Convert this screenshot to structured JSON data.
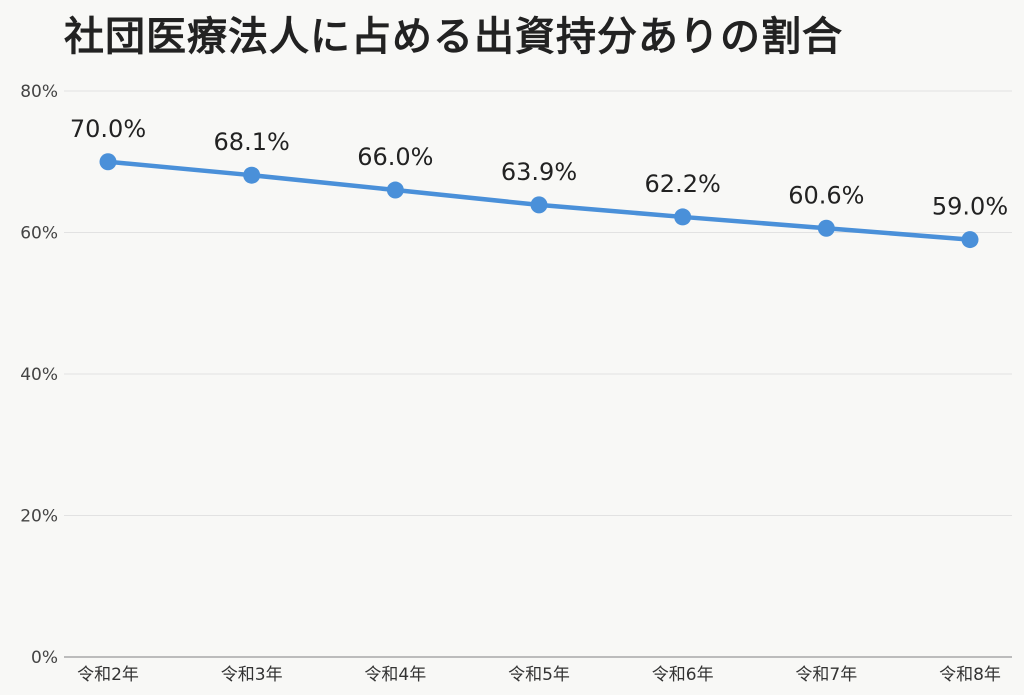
{
  "title": "社団医療法人に占める出資持分ありの割合",
  "chart_data": {
    "type": "line",
    "title": "社団医療法人に占める出資持分ありの割合",
    "categories": [
      "令和2年",
      "令和3年",
      "令和4年",
      "令和5年",
      "令和6年",
      "令和7年",
      "令和8年"
    ],
    "series": [
      {
        "values": [
          70.0,
          68.1,
          66.0,
          63.9,
          62.2,
          60.6,
          59.0
        ],
        "labels": [
          "70.0%",
          "68.1%",
          "66.0%",
          "63.9%",
          "62.2%",
          "60.6%",
          "59.0%"
        ]
      }
    ],
    "yticks": [
      0,
      20,
      40,
      60,
      80
    ],
    "ytick_labels": [
      "0%",
      "20%",
      "40%",
      "60%",
      "80%"
    ],
    "ylim": [
      0,
      80
    ],
    "xlabel": "",
    "ylabel": "",
    "grid": true,
    "legend": "none",
    "line_color": "#4a90d9"
  }
}
